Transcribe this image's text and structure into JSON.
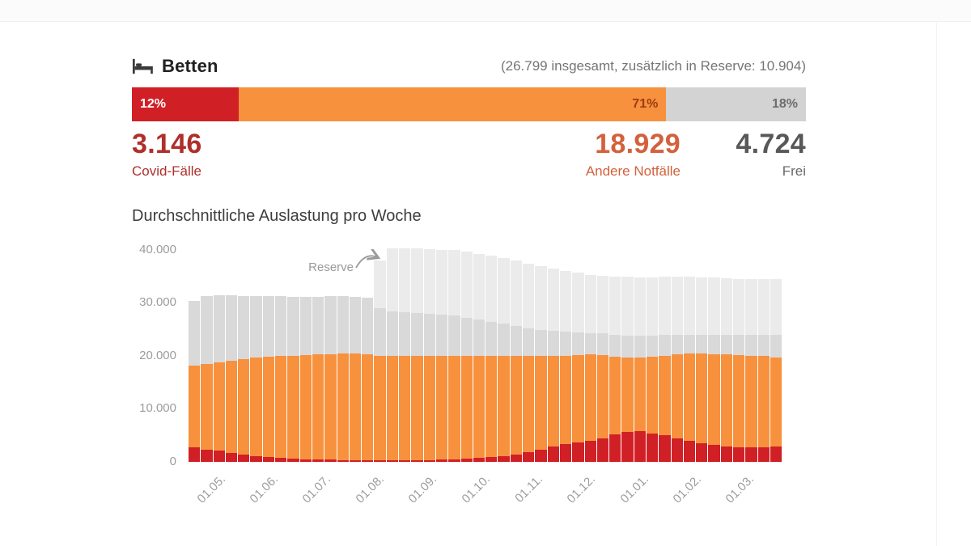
{
  "header": {
    "title": "Betten",
    "summary": "(26.799 insgesamt, zusätzlich in Reserve: 10.904)"
  },
  "capacity_bar": {
    "segments": [
      {
        "name": "covid",
        "label": "12%",
        "pct": 12,
        "color": "#d11f26",
        "text_color": "#ffffff",
        "align": "left"
      },
      {
        "name": "other",
        "label": "71%",
        "pct": 71,
        "color": "#f7913d",
        "text_color": "#9c3d12",
        "align": "right"
      },
      {
        "name": "free",
        "label": "18%",
        "pct": 18,
        "color": "#d3d3d3",
        "text_color": "#6d6d6d",
        "align": "right"
      }
    ]
  },
  "stats": [
    {
      "value": "3.146",
      "label": "Covid-Fälle",
      "color": "#ae2f2b"
    },
    {
      "value": "18.929",
      "label": "Andere Notfälle",
      "color": "#d2613c"
    },
    {
      "value": "4.724",
      "label": "Frei",
      "color": "#58585a"
    }
  ],
  "chart_data": {
    "type": "bar",
    "stacked": true,
    "title": "Durchschnittliche Auslastung pro Woche",
    "annotation": "Reserve",
    "xlabel": "",
    "ylabel": "",
    "ylim": [
      0,
      41500
    ],
    "grid": false,
    "legend": "none",
    "y_ticks": [
      {
        "label": "40.000",
        "value": 40000
      },
      {
        "label": "30.000",
        "value": 30000
      },
      {
        "label": "20.000",
        "value": 20000
      },
      {
        "label": "10.000",
        "value": 10000
      },
      {
        "label": "0",
        "value": 0
      }
    ],
    "x_ticks": [
      "01.05.",
      "01.06.",
      "01.07.",
      "01.08.",
      "01.09.",
      "01.10.",
      "01.11.",
      "01.12.",
      "01.01.",
      "01.02.",
      "01.03."
    ],
    "series": [
      {
        "name": "Covid-Fälle",
        "color": "#d11f26",
        "values": [
          2700,
          2300,
          2100,
          1700,
          1400,
          1100,
          900,
          700,
          600,
          500,
          450,
          400,
          350,
          300,
          300,
          300,
          300,
          300,
          300,
          350,
          400,
          500,
          600,
          700,
          900,
          1100,
          1400,
          1800,
          2300,
          2900,
          3400,
          3700,
          4000,
          4400,
          5200,
          5600,
          5800,
          5400,
          5000,
          4400,
          3900,
          3500,
          3200,
          2900,
          2750,
          2700,
          2750,
          2900
        ]
      },
      {
        "name": "Andere Notfälle",
        "color": "#f7913d",
        "values": [
          15500,
          16200,
          16700,
          17400,
          18000,
          18500,
          18900,
          19200,
          19400,
          19600,
          19750,
          19900,
          20050,
          20100,
          20000,
          19700,
          19700,
          19700,
          19700,
          19650,
          19600,
          19500,
          19400,
          19300,
          19100,
          18900,
          18600,
          18100,
          17600,
          17000,
          16600,
          16400,
          16200,
          15700,
          14600,
          14000,
          13800,
          14400,
          15000,
          15900,
          16500,
          16900,
          17100,
          17300,
          17350,
          17300,
          17250,
          16800
        ]
      },
      {
        "name": "Frei",
        "color": "#d9d9d9",
        "values": [
          12200,
          12700,
          12600,
          12300,
          11900,
          11700,
          11400,
          11300,
          11100,
          11000,
          10900,
          10900,
          10800,
          10700,
          10600,
          8900,
          8400,
          8200,
          8000,
          7900,
          7800,
          7600,
          7200,
          6800,
          6400,
          6000,
          5600,
          5300,
          5000,
          4800,
          4500,
          4300,
          4100,
          4100,
          4200,
          4200,
          4200,
          4000,
          3900,
          3600,
          3500,
          3500,
          3600,
          3700,
          3800,
          3900,
          4000,
          4300
        ]
      },
      {
        "name": "Reserve",
        "color": "#ebebeb",
        "values": [
          0,
          0,
          0,
          0,
          0,
          0,
          0,
          0,
          0,
          0,
          0,
          0,
          0,
          0,
          0,
          9000,
          11800,
          12100,
          12200,
          12200,
          12200,
          12400,
          12400,
          12400,
          12400,
          12400,
          12400,
          12200,
          12000,
          11700,
          11500,
          11200,
          10900,
          10800,
          10900,
          11100,
          11000,
          11000,
          11000,
          11000,
          11000,
          10900,
          10800,
          10700,
          10600,
          10600,
          10500,
          10400
        ]
      }
    ]
  }
}
